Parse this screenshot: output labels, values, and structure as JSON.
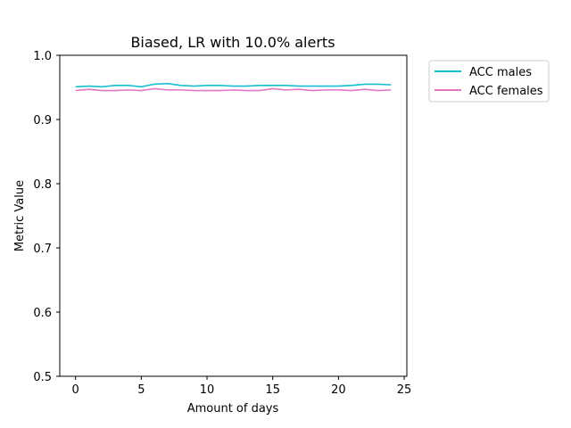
{
  "chart_data": {
    "type": "line",
    "title": "Biased, LR with 10.0% alerts",
    "xlabel": "Amount of days",
    "ylabel": "Metric Value",
    "xlim": [
      -1.2,
      25.2
    ],
    "ylim": [
      0.5,
      1.0
    ],
    "x_ticks": [
      0,
      5,
      10,
      15,
      20,
      25
    ],
    "y_ticks": [
      0.5,
      0.6,
      0.7,
      0.8,
      0.9,
      1.0
    ],
    "y_tick_labels": [
      "0.5",
      "0.6",
      "0.7",
      "0.8",
      "0.9",
      "1.0"
    ],
    "x": [
      0,
      1,
      2,
      3,
      4,
      5,
      6,
      7,
      8,
      9,
      10,
      11,
      12,
      13,
      14,
      15,
      16,
      17,
      18,
      19,
      20,
      21,
      22,
      23,
      24
    ],
    "grid": false,
    "legend_position": "outside-top-right",
    "series": [
      {
        "name": "ACC males",
        "color": "#17becf",
        "values": [
          0.951,
          0.952,
          0.951,
          0.953,
          0.953,
          0.951,
          0.955,
          0.956,
          0.953,
          0.952,
          0.953,
          0.953,
          0.952,
          0.952,
          0.953,
          0.953,
          0.953,
          0.952,
          0.952,
          0.952,
          0.952,
          0.953,
          0.955,
          0.955,
          0.954
        ]
      },
      {
        "name": "ACC females",
        "color": "#e377c2",
        "values": [
          0.945,
          0.947,
          0.945,
          0.945,
          0.946,
          0.945,
          0.948,
          0.946,
          0.946,
          0.945,
          0.945,
          0.945,
          0.946,
          0.945,
          0.945,
          0.948,
          0.946,
          0.947,
          0.945,
          0.946,
          0.946,
          0.945,
          0.947,
          0.945,
          0.946
        ]
      }
    ]
  }
}
